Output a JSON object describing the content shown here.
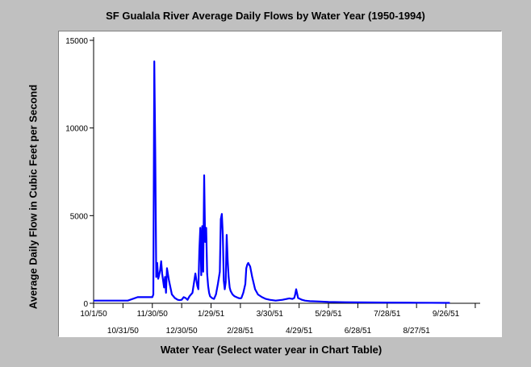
{
  "chart_data": {
    "type": "line",
    "title": "SF Gualala River Average Daily Flows by Water Year (1950-1994)",
    "xlabel": "Water Year (Select water year in Chart Table)",
    "ylabel": "Average Daily Flow in Cubic Feet per Second",
    "ylim": [
      0,
      15000
    ],
    "yticks": [
      0,
      5000,
      10000,
      15000
    ],
    "ytick_labels": [
      "0",
      "5000",
      "10000",
      "15000"
    ],
    "xlim": [
      "1950-10-01",
      "1951-10-31"
    ],
    "xticks": [
      {
        "date": "1950-10-01",
        "label": "10/1/50"
      },
      {
        "date": "1950-10-31",
        "label": "10/31/50"
      },
      {
        "date": "1950-11-30",
        "label": "11/30/50"
      },
      {
        "date": "1950-12-30",
        "label": "12/30/50"
      },
      {
        "date": "1951-01-29",
        "label": "1/29/51"
      },
      {
        "date": "1951-02-28",
        "label": "2/28/51"
      },
      {
        "date": "1951-03-30",
        "label": "3/30/51"
      },
      {
        "date": "1951-04-29",
        "label": "4/29/51"
      },
      {
        "date": "1951-05-29",
        "label": "5/29/51"
      },
      {
        "date": "1951-06-28",
        "label": "6/28/51"
      },
      {
        "date": "1951-07-28",
        "label": "7/28/51"
      },
      {
        "date": "1951-08-27",
        "label": "8/27/51"
      },
      {
        "date": "1951-09-26",
        "label": "9/26/51"
      },
      {
        "date": "1951-10-26",
        "label": ""
      }
    ],
    "grid": false,
    "line_color": "#0000ff",
    "series": [
      {
        "x": [
          "1950-10-01",
          "1950-10-20",
          "1950-10-21",
          "1950-10-25",
          "1950-11-05",
          "1950-11-15",
          "1950-11-27",
          "1950-11-28",
          "1950-11-29",
          "1950-11-30",
          "1950-12-01",
          "1950-12-02",
          "1950-12-03",
          "1950-12-04",
          "1950-12-05",
          "1950-12-06",
          "1950-12-07",
          "1950-12-08",
          "1950-12-09",
          "1950-12-10",
          "1950-12-11",
          "1950-12-12",
          "1950-12-13",
          "1950-12-14",
          "1950-12-15",
          "1950-12-17",
          "1950-12-20",
          "1950-12-23",
          "1950-12-26",
          "1950-12-28",
          "1950-12-30",
          "1951-01-01",
          "1951-01-03",
          "1951-01-05",
          "1951-01-07",
          "1951-01-10",
          "1951-01-13",
          "1951-01-15",
          "1951-01-16",
          "1951-01-17",
          "1951-01-18",
          "1951-01-19",
          "1951-01-20",
          "1951-01-21",
          "1951-01-22",
          "1951-01-23",
          "1951-01-24",
          "1951-01-25",
          "1951-01-26",
          "1951-01-27",
          "1951-01-28",
          "1951-01-30",
          "1951-02-01",
          "1951-02-03",
          "1951-02-05",
          "1951-02-07",
          "1951-02-08",
          "1951-02-09",
          "1951-02-10",
          "1951-02-11",
          "1951-02-12",
          "1951-02-13",
          "1951-02-14",
          "1951-02-15",
          "1951-02-16",
          "1951-02-17",
          "1951-02-18",
          "1951-02-20",
          "1951-02-22",
          "1951-02-24",
          "1951-02-26",
          "1951-02-28",
          "1951-03-01",
          "1951-03-03",
          "1951-03-05",
          "1951-03-06",
          "1951-03-07",
          "1951-03-08",
          "1951-03-10",
          "1951-03-12",
          "1951-03-15",
          "1951-03-18",
          "1951-03-22",
          "1951-03-26",
          "1951-03-30",
          "1951-04-05",
          "1951-04-12",
          "1951-04-19",
          "1951-04-22",
          "1951-04-24",
          "1951-04-25",
          "1951-04-26",
          "1951-04-27",
          "1951-04-28",
          "1951-04-30",
          "1951-05-02",
          "1951-05-05",
          "1951-05-10",
          "1951-05-20",
          "1951-05-29",
          "1951-06-15",
          "1951-06-28",
          "1951-07-28",
          "1951-08-27",
          "1951-09-26",
          "1951-09-30"
        ],
        "y": [
          150,
          150,
          150,
          150,
          150,
          350,
          350,
          350,
          350,
          350,
          500,
          13800,
          8600,
          1500,
          2300,
          1400,
          1600,
          1900,
          2400,
          1700,
          1300,
          900,
          1500,
          600,
          2000,
          1300,
          500,
          300,
          200,
          180,
          200,
          350,
          300,
          200,
          400,
          600,
          1700,
          1000,
          800,
          3000,
          4300,
          1600,
          4400,
          1800,
          7300,
          3500,
          4300,
          1700,
          1000,
          600,
          400,
          300,
          250,
          500,
          1100,
          1800,
          4800,
          5100,
          3900,
          1300,
          800,
          1200,
          3900,
          2500,
          1500,
          900,
          700,
          500,
          400,
          350,
          300,
          280,
          300,
          600,
          1100,
          2000,
          2200,
          2300,
          2100,
          1500,
          800,
          500,
          350,
          250,
          200,
          150,
          200,
          280,
          250,
          300,
          500,
          800,
          550,
          300,
          250,
          200,
          150,
          120,
          100,
          80,
          60,
          50,
          40,
          30,
          25,
          25
        ]
      }
    ]
  }
}
